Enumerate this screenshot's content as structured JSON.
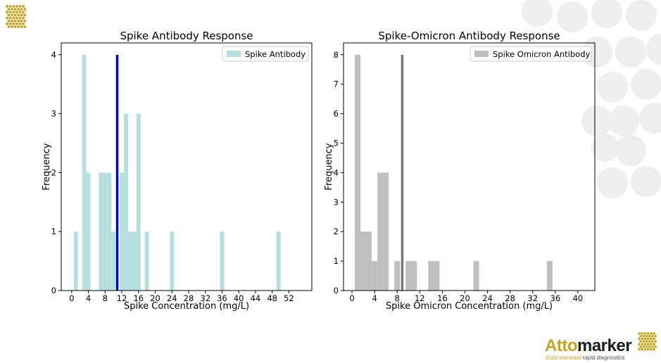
{
  "branding": {
    "logo_part1": "Atto",
    "logo_part2": "marker",
    "tagline_part1": "Gold standard",
    "tagline_part2": "rapid diagnostics",
    "gold_color": "#c8a21a",
    "circle_color": "#eeeeee"
  },
  "chart_data": [
    {
      "type": "bar",
      "title": "Spike Antibody Response",
      "xlabel": "Spike Concentration (mg/L)",
      "ylabel": "Frequency",
      "legend_label": "Spike Antibody",
      "legend_position": "top-right",
      "color": "#b6e0e0",
      "xlim": [
        -2.5,
        57.5
      ],
      "ylim": [
        0,
        4.2
      ],
      "x_ticks": [
        "0",
        "4",
        "8",
        "12",
        "16",
        "20",
        "24",
        "28",
        "32",
        "36",
        "40",
        "44",
        "48",
        "52"
      ],
      "y_ticks": [
        "0",
        "1",
        "2",
        "3",
        "4"
      ],
      "bin_width": 1,
      "bins": [
        {
          "x": 1,
          "count": 1
        },
        {
          "x": 3,
          "count": 4
        },
        {
          "x": 4,
          "count": 2
        },
        {
          "x": 7,
          "count": 2
        },
        {
          "x": 8,
          "count": 2
        },
        {
          "x": 9,
          "count": 2
        },
        {
          "x": 10,
          "count": 1
        },
        {
          "x": 12,
          "count": 2
        },
        {
          "x": 13,
          "count": 3
        },
        {
          "x": 14,
          "count": 1
        },
        {
          "x": 15,
          "count": 1
        },
        {
          "x": 16,
          "count": 3
        },
        {
          "x": 18,
          "count": 1
        },
        {
          "x": 24,
          "count": 1
        },
        {
          "x": 36,
          "count": 1
        },
        {
          "x": 49.5,
          "count": 1
        }
      ],
      "vline": {
        "x": 10.9,
        "color": "#0000dd"
      }
    },
    {
      "type": "bar",
      "title": "Spike-Omicron Antibody Response",
      "xlabel": "Spike Omicron Concentration (mg/L)",
      "ylabel": "Frequency",
      "legend_label": "Spike Omicron Antibody",
      "legend_position": "top-right",
      "color": "#bfbfbf",
      "xlim": [
        -1.5,
        43
      ],
      "ylim": [
        0,
        8.4
      ],
      "x_ticks": [
        "0",
        "4",
        "8",
        "12",
        "16",
        "20",
        "24",
        "28",
        "32",
        "36",
        "40"
      ],
      "y_ticks": [
        "0",
        "1",
        "2",
        "3",
        "4",
        "5",
        "6",
        "7",
        "8"
      ],
      "bin_width": 1,
      "bins": [
        {
          "x": 1,
          "count": 8
        },
        {
          "x": 2,
          "count": 2
        },
        {
          "x": 3,
          "count": 2
        },
        {
          "x": 4,
          "count": 1
        },
        {
          "x": 5,
          "count": 4
        },
        {
          "x": 6,
          "count": 4
        },
        {
          "x": 8,
          "count": 1
        },
        {
          "x": 10,
          "count": 1
        },
        {
          "x": 11,
          "count": 1
        },
        {
          "x": 14,
          "count": 1
        },
        {
          "x": 15,
          "count": 1
        },
        {
          "x": 22,
          "count": 1
        },
        {
          "x": 35,
          "count": 1
        }
      ],
      "vline": {
        "x": 8.9,
        "color": "#777777"
      }
    }
  ]
}
